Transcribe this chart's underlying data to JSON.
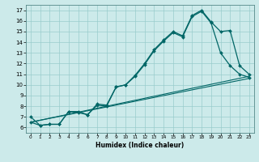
{
  "xlabel": "Humidex (Indice chaleur)",
  "bg_color": "#cceaea",
  "line_color": "#006666",
  "grid_color": "#99cccc",
  "xlim": [
    -0.5,
    23.5
  ],
  "ylim": [
    5.5,
    17.5
  ],
  "xticks": [
    0,
    1,
    2,
    3,
    4,
    5,
    6,
    7,
    8,
    9,
    10,
    11,
    12,
    13,
    14,
    15,
    16,
    17,
    18,
    19,
    20,
    21,
    22,
    23
  ],
  "yticks": [
    6,
    7,
    8,
    9,
    10,
    11,
    12,
    13,
    14,
    15,
    16,
    17
  ],
  "curve1_x": [
    0,
    1,
    2,
    3,
    4,
    5,
    6,
    7,
    8,
    9,
    10,
    11,
    12,
    13,
    14,
    15,
    16,
    17,
    18,
    19,
    20,
    21,
    22,
    23
  ],
  "curve1_y": [
    7.0,
    6.2,
    6.3,
    6.3,
    7.5,
    7.5,
    7.2,
    8.2,
    8.1,
    9.8,
    10.0,
    10.9,
    12.0,
    13.3,
    14.2,
    15.0,
    14.6,
    16.5,
    17.0,
    15.9,
    15.0,
    15.1,
    11.8,
    11.0
  ],
  "curve2_x": [
    0,
    1,
    2,
    3,
    4,
    5,
    6,
    7,
    8,
    9,
    10,
    11,
    12,
    13,
    14,
    15,
    16,
    17,
    18,
    19,
    20,
    21,
    22,
    23
  ],
  "curve2_y": [
    6.5,
    6.2,
    6.3,
    6.3,
    7.5,
    7.4,
    7.2,
    8.1,
    8.0,
    9.8,
    10.0,
    10.8,
    11.9,
    13.2,
    14.1,
    14.9,
    14.5,
    16.4,
    16.9,
    15.8,
    13.0,
    11.8,
    11.0,
    10.7
  ],
  "line3_x": [
    0,
    23
  ],
  "line3_y": [
    6.5,
    10.6
  ],
  "line4_x": [
    0,
    23
  ],
  "line4_y": [
    6.5,
    10.8
  ]
}
